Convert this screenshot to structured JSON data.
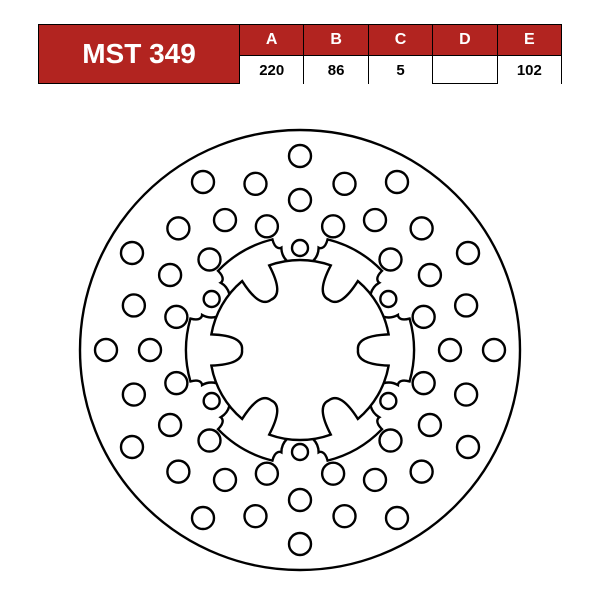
{
  "table": {
    "title": "MST 349",
    "title_bg": "#b22420",
    "title_color": "#ffffff",
    "header_bg": "#b22420",
    "header_color": "#ffffff",
    "value_bg": "#ffffff",
    "value_color": "#000000",
    "border_color": "#000000",
    "title_fontsize": 28,
    "header_fontsize": 16,
    "value_fontsize": 15,
    "columns": [
      "A",
      "B",
      "C",
      "D",
      "E"
    ],
    "values": [
      "220",
      "86",
      "5",
      "",
      "102"
    ]
  },
  "disc": {
    "type": "technical-drawing",
    "stroke": "#000000",
    "stroke_width": 1.2,
    "background": "#ffffff",
    "outer_diameter": 220,
    "inner_mount_diameter": 86,
    "bolt_circle_diameter": 102,
    "bolt_count": 6,
    "bolt_hole_radius": 4,
    "spoke_count": 6,
    "vent_hole_rings": [
      {
        "radius": 97,
        "count": 12,
        "hole_r": 5.5,
        "offset_deg": 0
      },
      {
        "radius": 86,
        "count": 12,
        "hole_r": 5.5,
        "offset_deg": 15
      },
      {
        "radius": 75,
        "count": 12,
        "hole_r": 5.5,
        "offset_deg": 0
      },
      {
        "radius": 64,
        "count": 12,
        "hole_r": 5.5,
        "offset_deg": 15
      }
    ],
    "friction_inner_radius": 57
  }
}
